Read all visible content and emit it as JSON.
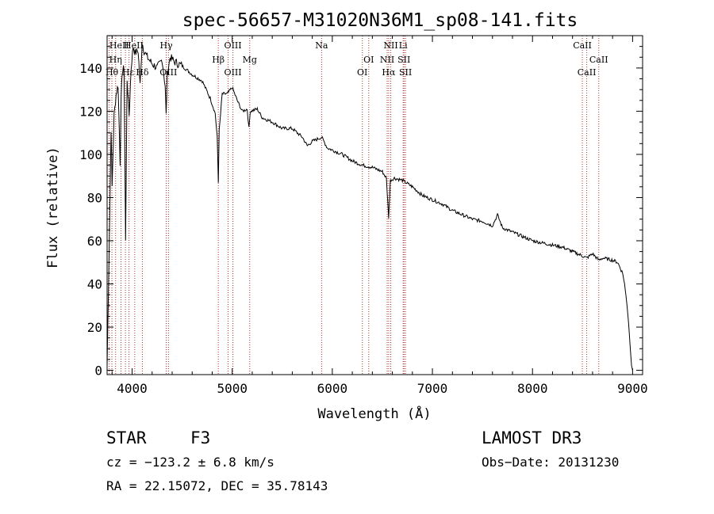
{
  "chart_data": {
    "type": "line",
    "title": "spec-56657-M31020N36M1_sp08-141.fits",
    "xlabel": "Wavelength (Å)",
    "ylabel": "Flux (relative)",
    "xlim": [
      3750,
      9100
    ],
    "ylim": [
      -2,
      155
    ],
    "x_ticks": [
      4000,
      5000,
      6000,
      7000,
      8000,
      9000
    ],
    "y_ticks": [
      0,
      20,
      40,
      60,
      80,
      100,
      120,
      140
    ],
    "series": [
      {
        "name": "spectrum",
        "x": [
          3750,
          3770,
          3790,
          3800,
          3820,
          3840,
          3860,
          3880,
          3890,
          3900,
          3920,
          3935,
          3950,
          3970,
          3990,
          4010,
          4030,
          4060,
          4080,
          4100,
          4120,
          4150,
          4200,
          4250,
          4300,
          4330,
          4340,
          4350,
          4380,
          4420,
          4500,
          4600,
          4700,
          4780,
          4830,
          4850,
          4861,
          4870,
          4900,
          4950,
          5000,
          5050,
          5100,
          5150,
          5167,
          5180,
          5250,
          5300,
          5400,
          5500,
          5600,
          5700,
          5750,
          5800,
          5893,
          5950,
          6000,
          6100,
          6200,
          6300,
          6400,
          6500,
          6540,
          6563,
          6580,
          6620,
          6700,
          6800,
          6900,
          7000,
          7100,
          7200,
          7300,
          7400,
          7500,
          7600,
          7650,
          7700,
          7800,
          7900,
          8000,
          8100,
          8200,
          8300,
          8400,
          8498,
          8542,
          8600,
          8662,
          8700,
          8800,
          8850,
          8900,
          8920,
          8940,
          8960,
          8980,
          8990,
          9000
        ],
        "y": [
          2,
          55,
          112,
          85,
          118,
          128,
          132,
          96,
          125,
          138,
          140,
          60,
          135,
          118,
          140,
          150,
          147,
          148,
          132,
          152,
          148,
          145,
          142,
          140,
          144,
          132,
          118,
          137,
          145,
          143,
          141,
          137,
          134,
          126,
          119,
          108,
          87,
          111,
          128,
          128,
          131,
          125,
          120,
          121,
          112,
          120,
          121,
          117,
          115,
          112,
          112,
          108,
          104,
          106,
          108,
          103,
          102,
          100,
          97,
          95,
          94,
          92,
          89,
          71,
          88,
          89,
          88,
          85,
          81,
          79,
          77,
          74,
          72,
          70,
          69,
          67,
          72,
          66,
          64,
          62,
          60,
          59,
          58,
          57,
          55,
          53,
          52,
          54,
          51,
          52,
          51,
          50,
          45,
          40,
          32,
          22,
          8,
          2,
          0
        ]
      }
    ],
    "line_color": "#000000",
    "reference_line_color": "#a93226",
    "reference_lines": [
      3771,
      3798,
      3835,
      3889,
      3933,
      3969,
      4026,
      4102,
      4341,
      4363,
      4861,
      4959,
      5007,
      5175,
      5893,
      6300,
      6364,
      6548,
      6563,
      6584,
      6708,
      6716,
      6731,
      8498,
      8542,
      8662
    ],
    "line_labels": [
      {
        "text": "HeII",
        "wavelength": 3871,
        "row": 1
      },
      {
        "text": "HeII",
        "wavelength": 4015,
        "row": 1
      },
      {
        "text": "Hγ",
        "wavelength": 4341,
        "row": 1
      },
      {
        "text": "OIII",
        "wavelength": 5007,
        "row": 1
      },
      {
        "text": "Na",
        "wavelength": 5893,
        "row": 1
      },
      {
        "text": "NII",
        "wavelength": 6584,
        "row": 1
      },
      {
        "text": "Li",
        "wavelength": 6708,
        "row": 1
      },
      {
        "text": "CaII",
        "wavelength": 8498,
        "row": 1
      },
      {
        "text": "Hη",
        "wavelength": 3835,
        "row": 2
      },
      {
        "text": "Hβ",
        "wavelength": 4861,
        "row": 2
      },
      {
        "text": "Mg",
        "wavelength": 5175,
        "row": 2
      },
      {
        "text": "OI",
        "wavelength": 6364,
        "row": 2
      },
      {
        "text": "NII",
        "wavelength": 6548,
        "row": 2
      },
      {
        "text": "SII",
        "wavelength": 6716,
        "row": 2
      },
      {
        "text": "CaII",
        "wavelength": 8662,
        "row": 2
      },
      {
        "text": "Hθ",
        "wavelength": 3798,
        "row": 3
      },
      {
        "text": "Hε",
        "wavelength": 3960,
        "row": 3
      },
      {
        "text": "Hδ",
        "wavelength": 4102,
        "row": 3
      },
      {
        "text": "OIII",
        "wavelength": 4363,
        "row": 3
      },
      {
        "text": "OIII",
        "wavelength": 5007,
        "row": 3
      },
      {
        "text": "OI",
        "wavelength": 6300,
        "row": 3
      },
      {
        "text": "Hα",
        "wavelength": 6563,
        "row": 3
      },
      {
        "text": "SII",
        "wavelength": 6731,
        "row": 3
      },
      {
        "text": "CaII",
        "wavelength": 8542,
        "row": 3
      }
    ]
  },
  "info": {
    "object_class": "STAR",
    "subclass": "F3",
    "survey": "LAMOST DR3",
    "redshift_text": "cz = −123.2 ± 6.8 km/s",
    "obs_date_text": "Obs−Date: 20131230",
    "coords_text": "RA =  22.15072, DEC =  35.78143"
  }
}
